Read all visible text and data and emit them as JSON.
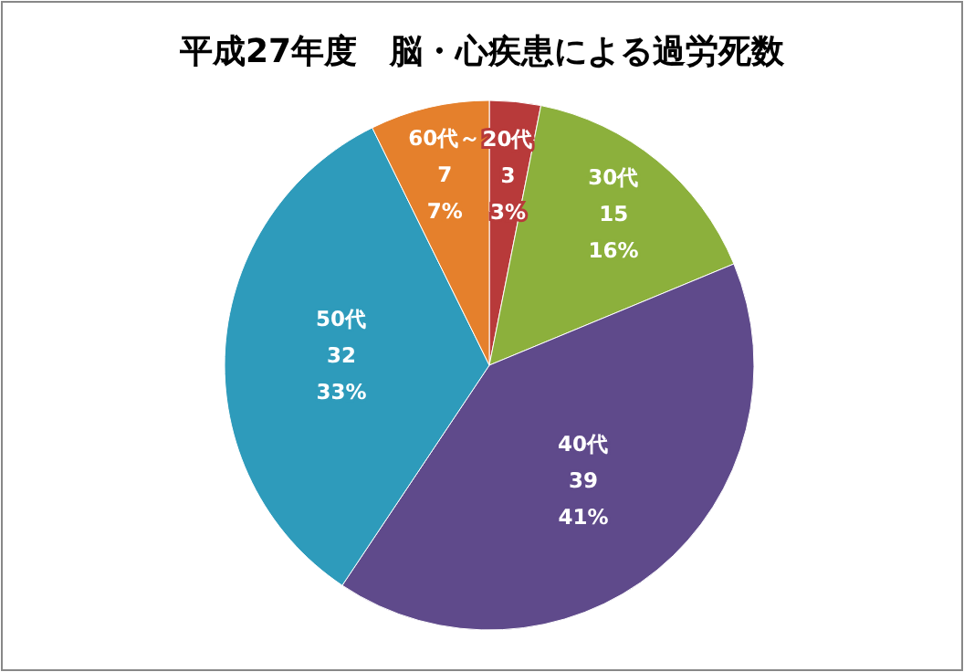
{
  "chart_data": {
    "type": "pie",
    "title": "平成27年度　脳・心疾患による過労死数",
    "categories": [
      "20代",
      "30代",
      "40代",
      "50代",
      "60代～"
    ],
    "values": [
      3,
      15,
      39,
      32,
      7
    ],
    "value_labels": [
      "3\n3%",
      "15\n16%",
      "39\n41%",
      "32\n33%",
      "7\n7%"
    ],
    "colors": [
      "#b83a3a",
      "#8cb03c",
      "#5f4a8b",
      "#2e9bbb",
      "#e5802c"
    ]
  }
}
